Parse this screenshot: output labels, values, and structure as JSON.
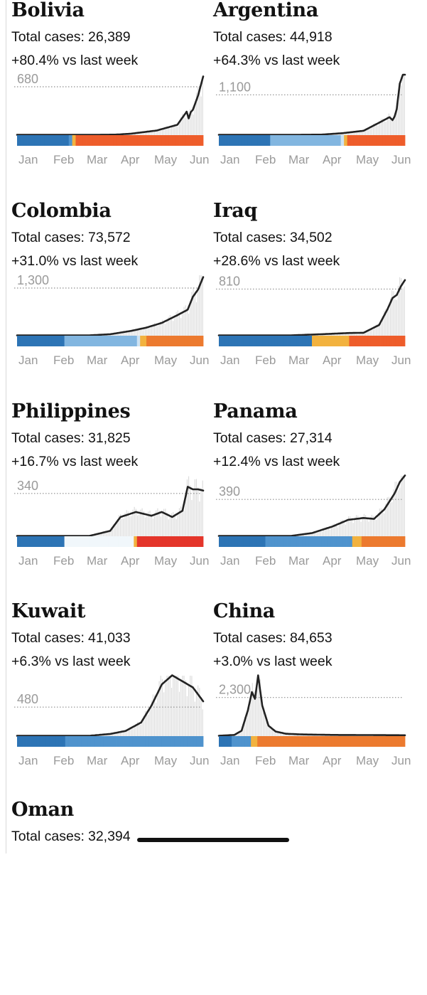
{
  "months": [
    "Jan",
    "Feb",
    "Mar",
    "Apr",
    "May",
    "Jun"
  ],
  "labels": {
    "total_prefix": "Total cases:",
    "change_suffix": "vs last week"
  },
  "colors": {
    "line": "#222222",
    "bars": "#d9d9d9",
    "ref": "#8f8f8f"
  },
  "palette": {
    "d": "#2d74b5",
    "m": "#4f93cd",
    "l": "#82b6e0",
    "p": "#cce2f3",
    "w": "#f1f7fb",
    "y": "#f2b23f",
    "o": "#ec7a2f",
    "O": "#ee5d2b",
    "r": "#e4352a"
  },
  "chart_data": [
    {
      "type": "line",
      "title": "Bolivia",
      "total": "26,389",
      "change": "+80.4%",
      "ref_label": "680",
      "ref_value": 680,
      "ylim": [
        0,
        850
      ],
      "x": [
        0,
        45,
        75,
        95,
        110,
        135,
        155,
        164,
        166,
        168,
        170,
        175,
        180
      ],
      "values": [
        0,
        0,
        0,
        2,
        15,
        60,
        140,
        325,
        230,
        320,
        350,
        550,
        820
      ],
      "strip": "dddddddddddddddmyOOOOOOOOOOOOOOOOOOOOOOOOOOOOOOOOOOOOO"
    },
    {
      "type": "line",
      "title": "Argentina",
      "total": "44,918",
      "change": "+64.3%",
      "ref_label": "1,100",
      "ref_value": 1100,
      "ylim": [
        0,
        1650
      ],
      "x": [
        0,
        45,
        75,
        100,
        120,
        140,
        155,
        165,
        168,
        170,
        172,
        175,
        178
      ],
      "values": [
        0,
        0,
        0,
        5,
        45,
        110,
        330,
        480,
        400,
        500,
        700,
        1400,
        1640
      ],
      "strip": "ddddddddddddddddllllllllllllllllllllllpyOOOOOOOOOOOOOOOOOO"
    },
    {
      "type": "line",
      "title": "Colombia",
      "total": "73,572",
      "change": "+31.0%",
      "ref_label": "1,300",
      "ref_value": 1300,
      "ylim": [
        0,
        1650
      ],
      "x": [
        0,
        45,
        70,
        90,
        110,
        125,
        140,
        155,
        165,
        170,
        175,
        180
      ],
      "values": [
        0,
        0,
        0,
        30,
        120,
        210,
        340,
        550,
        700,
        1050,
        1250,
        1590
      ],
      "strip": "dddddddddddddddlllllllllllllllllllllllpyyoooooooooooooooooo"
    },
    {
      "type": "line",
      "title": "Iraq",
      "total": "34,502",
      "change": "+28.6%",
      "ref_label": "810",
      "ref_value": 810,
      "ylim": [
        0,
        1050
      ],
      "x": [
        0,
        45,
        70,
        100,
        125,
        140,
        155,
        163,
        168,
        172,
        176,
        180
      ],
      "values": [
        0,
        0,
        0,
        20,
        40,
        45,
        180,
        450,
        650,
        700,
        850,
        960
      ],
      "strip": "ddddddddddddddddddddddddddddddyyyyyyyyyyyyOOOOOOOOOOOOOOOOOO"
    },
    {
      "type": "line",
      "title": "Philippines",
      "total": "31,825",
      "change": "+16.7%",
      "ref_label": "340",
      "ref_value": 340,
      "ylim": [
        0,
        480
      ],
      "x": [
        0,
        45,
        70,
        90,
        100,
        115,
        130,
        140,
        150,
        160,
        165,
        170,
        175,
        180
      ],
      "values": [
        0,
        0,
        0,
        40,
        150,
        190,
        160,
        190,
        150,
        200,
        390,
        370,
        370,
        360
      ],
      "strip": "dddddddddddddddwwwwwwwwwwwwwwwwwwwwwwyrrrrrrrrrrrrrrrrrrrrr"
    },
    {
      "type": "line",
      "title": "Panama",
      "total": "27,314",
      "change": "+12.4%",
      "ref_label": "390",
      "ref_value": 390,
      "ylim": [
        0,
        640
      ],
      "x": [
        0,
        45,
        70,
        90,
        110,
        125,
        140,
        150,
        160,
        170,
        175,
        180
      ],
      "values": [
        0,
        0,
        0,
        30,
        100,
        170,
        190,
        180,
        280,
        450,
        570,
        640
      ],
      "strip": "dddddddddddddddmmmmmmmmmmmmmmmmmmmmmmmmmmmmyyyoooooooooooooo"
    },
    {
      "type": "line",
      "title": "Kuwait",
      "total": "41,033",
      "change": "+6.3%",
      "ref_label": "480",
      "ref_value": 480,
      "ylim": [
        0,
        1000
      ],
      "x": [
        0,
        45,
        70,
        90,
        105,
        120,
        130,
        140,
        150,
        160,
        170,
        180
      ],
      "values": [
        0,
        0,
        0,
        30,
        80,
        220,
        500,
        850,
        1000,
        900,
        800,
        570
      ],
      "strip": "dddddddddddddddmmmmmmmmmmmmmmmmmmmmmmmmmmmmmmmmmmmmmmmmmmm"
    },
    {
      "type": "line",
      "title": "China",
      "total": "84,653",
      "change": "+3.0%",
      "ref_label": "2,300",
      "ref_value": 2300,
      "ylim": [
        0,
        3600
      ],
      "x": [
        0,
        15,
        22,
        28,
        32,
        35,
        38,
        42,
        48,
        55,
        65,
        80,
        110,
        150,
        180
      ],
      "values": [
        0,
        50,
        300,
        1500,
        2600,
        2200,
        3600,
        1800,
        600,
        250,
        120,
        80,
        50,
        40,
        30
      ],
      "strip": "ddddmmmmmmyyoooooooooooooooooooooooooooooooooooooooooooooo"
    }
  ],
  "last": {
    "title": "Oman",
    "total": "32,394"
  }
}
